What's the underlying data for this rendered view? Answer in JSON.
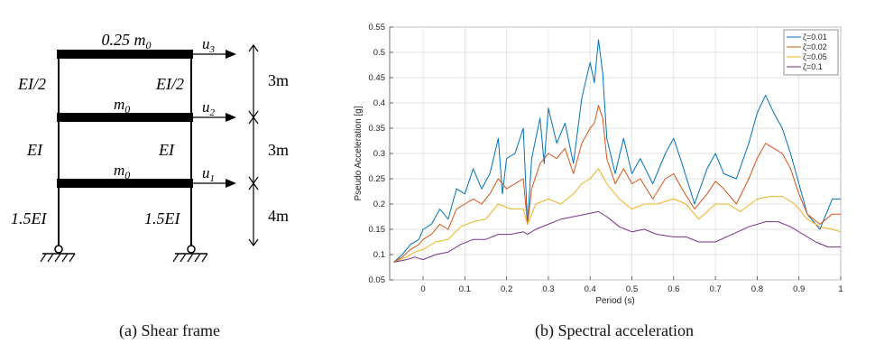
{
  "panel_a": {
    "caption": "(a) Shear frame",
    "floor_masses": [
      "0.25 m",
      "m",
      "m"
    ],
    "mass_subscript": "0",
    "displacements": [
      "u",
      "u",
      "u"
    ],
    "displacement_subscripts": [
      "3",
      "2",
      "1"
    ],
    "story_stiffness_left": [
      "EI/2",
      "EI",
      "1.5EI"
    ],
    "story_stiffness_right": [
      "EI/2",
      "EI",
      "1.5EI"
    ],
    "story_heights": [
      "3m",
      "3m",
      "4m"
    ]
  },
  "panel_b": {
    "caption": "(b) Spectral acceleration",
    "colors": {
      "s1": "#0072BD",
      "s2": "#D95319",
      "s3": "#EDB120",
      "s4": "#7E2F8E"
    }
  },
  "chart_data": {
    "type": "line",
    "xlabel": "Period (s)",
    "ylabel": "Pseudo Acceleration [g]",
    "xlim": [
      -0.08,
      1.0
    ],
    "ylim": [
      0.05,
      0.55
    ],
    "xticks": [
      "0",
      "0.1",
      "0.2",
      "0.3",
      "0.4",
      "0.5",
      "0.6",
      "0.7",
      "0.8",
      "0.9",
      "1"
    ],
    "yticks": [
      "0.05",
      "0.1",
      "0.15",
      "0.2",
      "0.25",
      "0.3",
      "0.35",
      "0.4",
      "0.45",
      "0.5",
      "0.55"
    ],
    "grid": true,
    "legend_position": "top-right",
    "series": [
      {
        "name": "ζ=0.01",
        "x": [
          -0.07,
          -0.05,
          -0.03,
          -0.01,
          0.0,
          0.02,
          0.04,
          0.06,
          0.08,
          0.1,
          0.12,
          0.14,
          0.16,
          0.18,
          0.19,
          0.2,
          0.22,
          0.24,
          0.25,
          0.26,
          0.28,
          0.29,
          0.3,
          0.32,
          0.34,
          0.36,
          0.38,
          0.4,
          0.41,
          0.42,
          0.43,
          0.44,
          0.46,
          0.48,
          0.5,
          0.52,
          0.55,
          0.58,
          0.6,
          0.62,
          0.65,
          0.68,
          0.7,
          0.72,
          0.75,
          0.78,
          0.8,
          0.82,
          0.84,
          0.86,
          0.88,
          0.9,
          0.92,
          0.95,
          0.98,
          1.0
        ],
        "y": [
          0.085,
          0.1,
          0.12,
          0.13,
          0.15,
          0.16,
          0.19,
          0.17,
          0.23,
          0.22,
          0.27,
          0.23,
          0.26,
          0.33,
          0.22,
          0.29,
          0.3,
          0.35,
          0.16,
          0.29,
          0.37,
          0.28,
          0.39,
          0.32,
          0.36,
          0.28,
          0.41,
          0.48,
          0.44,
          0.525,
          0.46,
          0.33,
          0.26,
          0.33,
          0.26,
          0.29,
          0.24,
          0.3,
          0.33,
          0.28,
          0.2,
          0.27,
          0.3,
          0.26,
          0.25,
          0.32,
          0.38,
          0.415,
          0.38,
          0.35,
          0.3,
          0.24,
          0.18,
          0.15,
          0.21,
          0.21
        ]
      },
      {
        "name": "ζ=0.02",
        "x": [
          -0.07,
          -0.05,
          -0.03,
          -0.01,
          0.0,
          0.02,
          0.04,
          0.06,
          0.08,
          0.1,
          0.12,
          0.14,
          0.16,
          0.18,
          0.2,
          0.22,
          0.24,
          0.25,
          0.26,
          0.28,
          0.3,
          0.32,
          0.34,
          0.36,
          0.38,
          0.4,
          0.41,
          0.42,
          0.43,
          0.44,
          0.46,
          0.48,
          0.5,
          0.52,
          0.55,
          0.58,
          0.6,
          0.62,
          0.65,
          0.68,
          0.7,
          0.72,
          0.75,
          0.78,
          0.8,
          0.82,
          0.84,
          0.86,
          0.88,
          0.9,
          0.92,
          0.95,
          0.98,
          1.0
        ],
        "y": [
          0.085,
          0.095,
          0.11,
          0.12,
          0.13,
          0.14,
          0.16,
          0.15,
          0.19,
          0.2,
          0.21,
          0.2,
          0.22,
          0.25,
          0.23,
          0.24,
          0.25,
          0.16,
          0.23,
          0.28,
          0.3,
          0.29,
          0.31,
          0.26,
          0.32,
          0.35,
          0.36,
          0.395,
          0.37,
          0.29,
          0.24,
          0.27,
          0.24,
          0.25,
          0.21,
          0.25,
          0.26,
          0.23,
          0.19,
          0.22,
          0.245,
          0.23,
          0.2,
          0.25,
          0.29,
          0.32,
          0.31,
          0.3,
          0.27,
          0.22,
          0.18,
          0.16,
          0.18,
          0.18
        ]
      },
      {
        "name": "ζ=0.05",
        "x": [
          -0.07,
          -0.04,
          -0.02,
          0.0,
          0.03,
          0.06,
          0.09,
          0.12,
          0.15,
          0.18,
          0.21,
          0.24,
          0.25,
          0.27,
          0.3,
          0.33,
          0.36,
          0.38,
          0.4,
          0.42,
          0.44,
          0.47,
          0.5,
          0.53,
          0.56,
          0.6,
          0.63,
          0.66,
          0.7,
          0.73,
          0.76,
          0.8,
          0.83,
          0.86,
          0.89,
          0.92,
          0.95,
          0.98,
          1.0
        ],
        "y": [
          0.085,
          0.095,
          0.105,
          0.11,
          0.125,
          0.13,
          0.155,
          0.165,
          0.17,
          0.2,
          0.19,
          0.19,
          0.16,
          0.2,
          0.21,
          0.2,
          0.22,
          0.24,
          0.25,
          0.27,
          0.24,
          0.21,
          0.19,
          0.2,
          0.2,
          0.21,
          0.2,
          0.17,
          0.2,
          0.2,
          0.185,
          0.21,
          0.215,
          0.215,
          0.2,
          0.17,
          0.155,
          0.15,
          0.145
        ]
      },
      {
        "name": "ζ=0.1",
        "x": [
          -0.07,
          -0.04,
          -0.02,
          0.0,
          0.03,
          0.06,
          0.09,
          0.12,
          0.15,
          0.18,
          0.21,
          0.24,
          0.25,
          0.27,
          0.3,
          0.33,
          0.36,
          0.39,
          0.42,
          0.44,
          0.47,
          0.5,
          0.53,
          0.56,
          0.6,
          0.63,
          0.66,
          0.7,
          0.74,
          0.78,
          0.82,
          0.85,
          0.88,
          0.91,
          0.94,
          0.97,
          1.0
        ],
        "y": [
          0.085,
          0.09,
          0.095,
          0.09,
          0.1,
          0.105,
          0.12,
          0.13,
          0.13,
          0.14,
          0.14,
          0.145,
          0.14,
          0.15,
          0.16,
          0.17,
          0.175,
          0.18,
          0.185,
          0.175,
          0.155,
          0.145,
          0.15,
          0.14,
          0.135,
          0.135,
          0.125,
          0.125,
          0.14,
          0.155,
          0.165,
          0.165,
          0.155,
          0.14,
          0.125,
          0.115,
          0.115
        ]
      }
    ]
  }
}
